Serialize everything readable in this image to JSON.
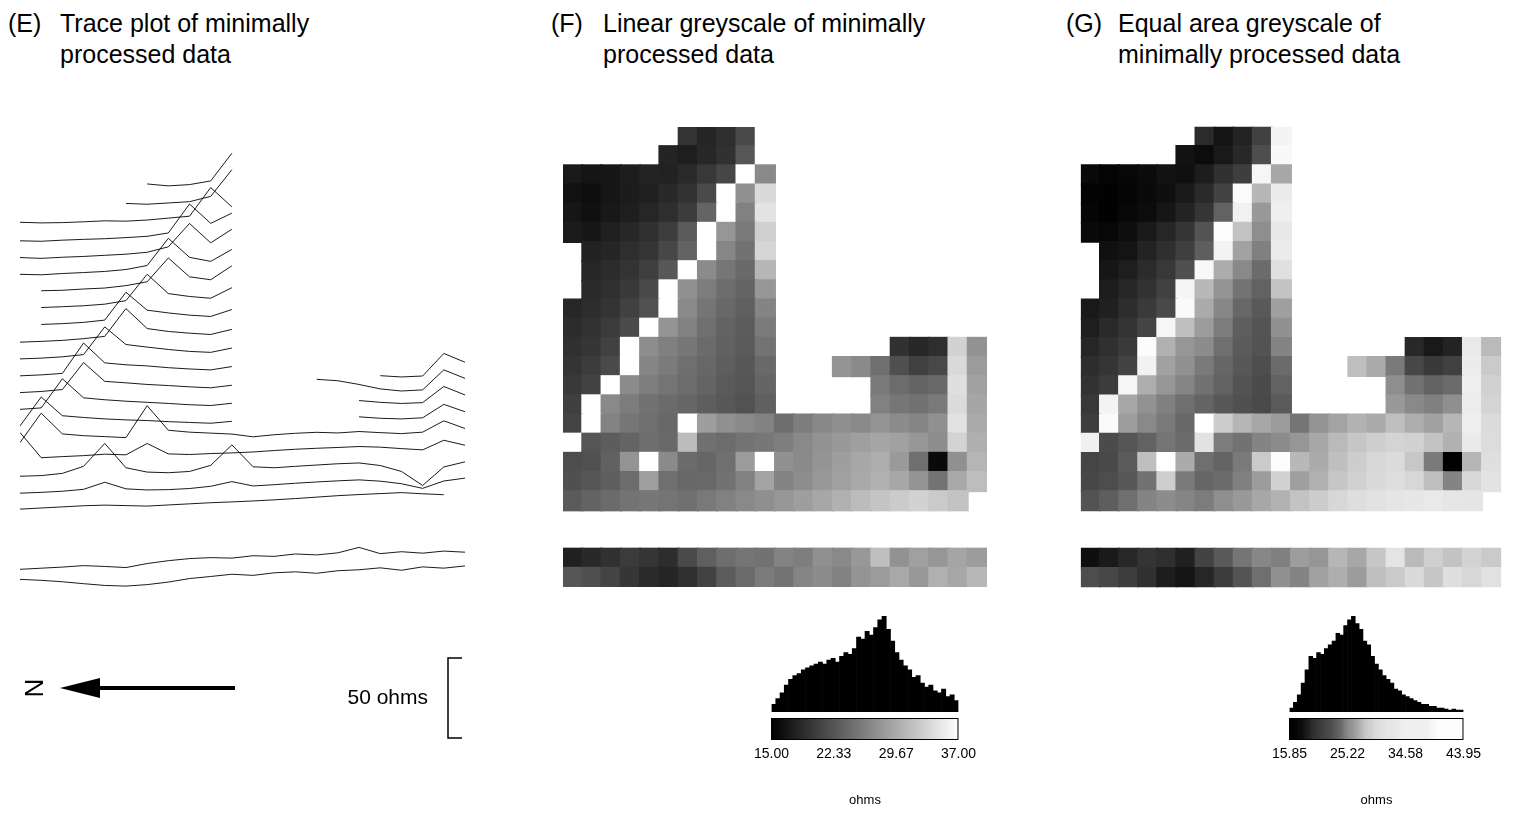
{
  "chart_data": [
    {
      "panel": "(E)",
      "title": "Trace plot of minimally processed data",
      "type": "line",
      "color": "#000000",
      "tick_labels": false,
      "grid": false,
      "scale_bar": {
        "value": 50,
        "label": "50 ohms"
      },
      "north_arrow": "N"
    },
    {
      "panel": "(F)",
      "title": "Linear greyscale of minimally processed data",
      "type": "heatmap",
      "colorbar": {
        "range": [
          15,
          37
        ],
        "ticks": [
          {
            "value": 15,
            "label": "15.00"
          },
          22.33,
          29.67,
          {
            "value": 37,
            "label": "37.00"
          }
        ],
        "title": "ohms"
      },
      "histogram": {
        "color": "#000000",
        "bins": [
          15,
          15.5,
          16,
          16.5,
          17,
          17.5,
          18,
          18.5,
          19,
          19.5,
          20,
          20.5,
          21,
          21.5,
          22,
          22.5,
          23,
          23.5,
          24,
          24.5,
          25,
          25.5,
          26,
          26.5,
          27,
          27.5,
          28,
          28.5,
          29,
          29.5,
          30,
          30.5,
          31,
          31.5,
          32,
          32.5,
          33,
          33.5,
          34,
          34.5,
          35,
          35.5,
          36,
          36.5,
          37
        ],
        "counts": [
          8,
          14,
          20,
          28,
          34,
          38,
          40,
          44,
          46,
          48,
          50,
          52,
          50,
          54,
          56,
          52,
          58,
          62,
          60,
          66,
          78,
          76,
          84,
          80,
          88,
          96,
          100,
          86,
          74,
          62,
          54,
          48,
          44,
          36,
          38,
          30,
          26,
          28,
          22,
          20,
          24,
          16,
          18,
          12
        ]
      }
    },
    {
      "panel": "(G)",
      "title": "Equal area greyscale of minimally processed data",
      "type": "equal_area_heatmap",
      "colorbar": {
        "range": [
          15.85,
          43.95
        ],
        "ticks": [
          15.85,
          25.22,
          34.58,
          43.95
        ],
        "title": "ohms"
      },
      "histogram": {
        "color": "#000000",
        "bins": [
          15.85,
          16.47,
          17.1,
          17.72,
          18.35,
          18.97,
          19.6,
          20.22,
          20.85,
          21.47,
          22.09,
          22.72,
          23.34,
          23.97,
          24.59,
          25.22,
          25.84,
          26.47,
          27.09,
          27.71,
          28.34,
          28.96,
          29.59,
          30.21,
          30.84,
          31.46,
          32.09,
          32.71,
          33.33,
          33.96,
          34.58,
          35.21,
          35.83,
          36.46,
          37.08,
          37.71,
          38.33,
          38.95,
          39.58,
          40.2,
          40.83,
          41.45,
          42.08,
          42.7,
          43.33,
          43.95
        ],
        "counts": [
          4,
          10,
          18,
          30,
          44,
          58,
          56,
          62,
          60,
          66,
          70,
          74,
          82,
          80,
          90,
          96,
          100,
          92,
          86,
          74,
          70,
          58,
          50,
          44,
          38,
          34,
          30,
          24,
          22,
          18,
          16,
          14,
          12,
          10,
          8,
          8,
          6,
          6,
          4,
          4,
          3,
          2,
          3,
          2,
          2
        ]
      }
    }
  ],
  "survey": {
    "cells": [
      [
        null,
        null,
        null,
        null,
        null,
        null,
        19.4,
        18.2,
        19.0,
        21.3,
        38.6,
        null,
        null,
        null,
        null,
        null,
        null,
        null,
        null,
        null,
        null,
        null
      ],
      [
        null,
        null,
        null,
        null,
        null,
        18.1,
        17.6,
        18.4,
        19.2,
        22.5,
        39.2,
        null,
        null,
        null,
        null,
        null,
        null,
        null,
        null,
        null,
        null,
        null
      ],
      [
        17.2,
        16.8,
        17.0,
        17.5,
        18.1,
        17.9,
        18.6,
        19.8,
        21.0,
        38.9,
        26.8,
        null,
        null,
        null,
        null,
        null,
        null,
        null,
        null,
        null,
        null,
        null
      ],
      [
        16.5,
        16.2,
        16.9,
        17.4,
        17.8,
        18.5,
        19.3,
        21.4,
        39.5,
        27.4,
        33.8,
        null,
        null,
        null,
        null,
        null,
        null,
        null,
        null,
        null,
        null,
        null
      ],
      [
        16.9,
        16.4,
        17.1,
        17.6,
        18.3,
        19.0,
        20.2,
        23.6,
        38.2,
        26.1,
        34.6,
        null,
        null,
        null,
        null,
        null,
        null,
        null,
        null,
        null,
        null,
        null
      ],
      [
        17.3,
        17.0,
        17.8,
        18.4,
        19.1,
        20.3,
        22.8,
        39.8,
        27.9,
        25.4,
        32.9,
        null,
        null,
        null,
        null,
        null,
        null,
        null,
        null,
        null,
        null,
        null
      ],
      [
        null,
        17.9,
        18.2,
        19.0,
        19.6,
        21.1,
        23.5,
        38.4,
        26.6,
        24.8,
        33.5,
        null,
        null,
        null,
        null,
        null,
        null,
        null,
        null,
        null,
        null,
        null
      ],
      [
        null,
        18.3,
        18.8,
        19.4,
        20.4,
        22.6,
        39.1,
        27.0,
        25.2,
        24.1,
        30.7,
        null,
        null,
        null,
        null,
        null,
        null,
        null,
        null,
        null,
        null,
        null
      ],
      [
        null,
        18.6,
        19.1,
        19.9,
        21.3,
        38.7,
        27.5,
        25.8,
        24.4,
        23.6,
        27.9,
        null,
        null,
        null,
        null,
        null,
        null,
        null,
        null,
        null,
        null,
        null
      ],
      [
        18.4,
        18.9,
        19.5,
        20.6,
        22.0,
        39.4,
        26.9,
        25.1,
        24.0,
        23.2,
        26.4,
        null,
        null,
        null,
        null,
        null,
        null,
        null,
        null,
        null,
        null,
        null
      ],
      [
        18.8,
        19.3,
        20.1,
        21.5,
        38.8,
        27.8,
        26.2,
        24.7,
        23.5,
        22.9,
        25.6,
        null,
        null,
        null,
        null,
        null,
        null,
        null,
        null,
        null,
        null,
        null
      ],
      [
        19.1,
        19.7,
        20.6,
        39.6,
        27.2,
        26.0,
        25.3,
        24.2,
        23.4,
        22.8,
        24.9,
        null,
        null,
        null,
        null,
        null,
        null,
        19.2,
        18.4,
        19.0,
        33.1,
        27.6
      ],
      [
        19.5,
        20.2,
        21.4,
        38.3,
        26.5,
        25.6,
        24.6,
        23.9,
        23.1,
        22.5,
        24.1,
        null,
        null,
        null,
        27.8,
        26.9,
        24.6,
        21.8,
        20.5,
        21.2,
        33.7,
        28.4
      ],
      [
        19.9,
        20.8,
        39.0,
        27.1,
        25.9,
        25.0,
        24.3,
        23.6,
        22.8,
        22.3,
        23.7,
        null,
        null,
        null,
        null,
        null,
        25.4,
        24.3,
        23.6,
        24.1,
        34.2,
        28.9
      ],
      [
        20.4,
        38.5,
        26.8,
        25.7,
        24.8,
        24.2,
        23.8,
        23.1,
        22.6,
        22.1,
        23.3,
        null,
        null,
        null,
        null,
        null,
        26.1,
        25.2,
        24.8,
        25.5,
        33.9,
        29.3
      ],
      [
        20.9,
        39.3,
        26.3,
        25.2,
        24.6,
        24.0,
        43.95,
        28.6,
        27.4,
        26.8,
        26.2,
        24.5,
        25.8,
        26.7,
        27.3,
        26.9,
        27.8,
        27.1,
        26.5,
        27.4,
        34.5,
        29.7
      ],
      [
        38.1,
        22.3,
        23.0,
        23.6,
        24.5,
        24.1,
        31.2,
        24.7,
        24.3,
        24.9,
        25.3,
        25.9,
        26.8,
        27.6,
        28.2,
        28.7,
        29.3,
        28.9,
        28.0,
        27.2,
        33.2,
        30.1
      ],
      [
        21.6,
        22.0,
        23.4,
        27.8,
        42.1,
        26.9,
        24.2,
        23.8,
        24.6,
        28.4,
        41.2,
        27.5,
        26.9,
        27.8,
        28.6,
        29.4,
        29.9,
        28.3,
        24.6,
        15.85,
        27.4,
        30.6
      ],
      [
        21.9,
        22.4,
        23.1,
        24.3,
        28.7,
        24.6,
        23.9,
        24.1,
        24.8,
        26.2,
        29.1,
        26.4,
        27.2,
        28.1,
        28.9,
        29.6,
        30.2,
        29.4,
        27.8,
        24.9,
        29.5,
        31.3
      ],
      [
        22.8,
        23.5,
        24.2,
        24.9,
        25.3,
        25.0,
        24.7,
        25.4,
        26.1,
        26.8,
        27.3,
        27.9,
        28.6,
        29.4,
        30.3,
        31.2,
        31.9,
        32.5,
        33.1,
        32.4,
        31.8,
        null
      ],
      [
        null,
        null,
        null,
        null,
        null,
        null,
        null,
        null,
        null,
        null,
        null,
        null,
        null,
        null,
        null,
        null,
        null,
        null,
        null,
        null,
        null,
        null
      ],
      [
        null,
        null,
        null,
        null,
        null,
        null,
        null,
        null,
        null,
        null,
        null,
        null,
        null,
        null,
        null,
        null,
        null,
        null,
        null,
        null,
        null,
        null
      ],
      [
        17.8,
        18.5,
        19.2,
        20.1,
        19.6,
        18.9,
        21.4,
        23.2,
        24.5,
        25.1,
        24.8,
        26.3,
        25.9,
        27.4,
        26.8,
        28.1,
        31.5,
        27.6,
        28.8,
        27.9,
        29.2,
        28.5
      ],
      [
        22.4,
        21.8,
        20.9,
        19.7,
        18.6,
        18.2,
        19.1,
        20.7,
        22.9,
        24.2,
        25.6,
        24.9,
        26.5,
        27.1,
        26.2,
        27.8,
        28.4,
        29.6,
        28.1,
        30.2,
        29.4,
        30.8
      ]
    ]
  }
}
